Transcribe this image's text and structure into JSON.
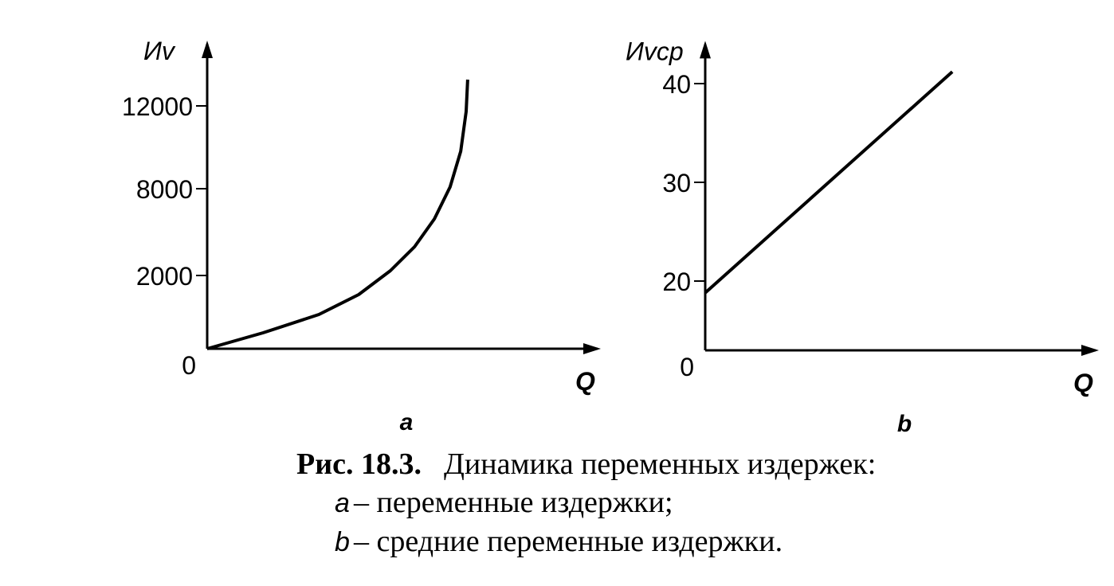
{
  "chart_data": [
    {
      "type": "line",
      "panel_label": "a",
      "y_label": "Иv",
      "x_label": "Q",
      "x": [
        0,
        14.6,
        29.2,
        39.6,
        47.9,
        54.2,
        59.4,
        63.5,
        66.3,
        67.7,
        68.1
      ],
      "values": [
        0,
        435,
        935,
        1478,
        2330,
        3980,
        5910,
        8080,
        9810,
        11730,
        13270
      ],
      "xlim": [
        0,
        100
      ],
      "ylim": [
        0,
        15000
      ],
      "yticks": [
        0,
        2000,
        8000,
        12000
      ],
      "color": "#000000"
    },
    {
      "type": "line",
      "panel_label": "b",
      "y_label": "Иvср",
      "x_label": "Q",
      "x": [
        0,
        64.6
      ],
      "values": [
        16.6,
        41.2
      ],
      "xlim": [
        0,
        100
      ],
      "ylim": [
        0,
        44
      ],
      "yticks": [
        0,
        20,
        30,
        40
      ],
      "color": "#000000"
    }
  ],
  "caption": {
    "number": "Рис. 18.3.",
    "title": "Динамика переменных издержек:",
    "lines": [
      {
        "letter": "a",
        "text": "– переменные издержки;"
      },
      {
        "letter": "b",
        "text": "– средние переменные издержки."
      }
    ]
  }
}
